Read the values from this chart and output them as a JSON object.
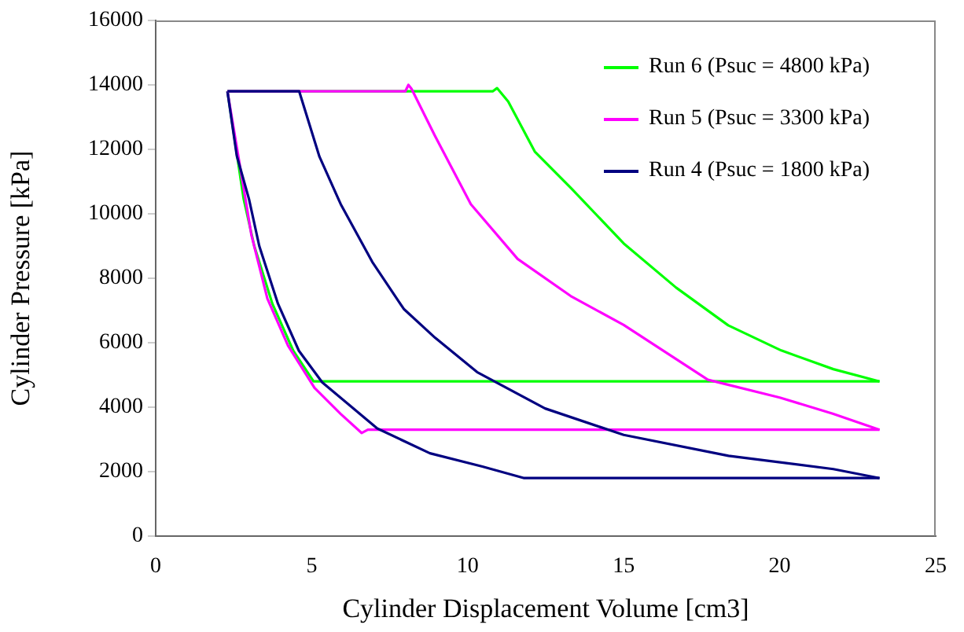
{
  "chart_data": {
    "type": "line",
    "xlabel": "Cylinder Displacement Volume [cm3]",
    "ylabel": "Cylinder Pressure [kPa]",
    "xlim": [
      0,
      25
    ],
    "xticks": [
      0,
      5,
      10,
      15,
      20,
      25
    ],
    "ylim": [
      0,
      16000
    ],
    "yticks": [
      0,
      2000,
      4000,
      6000,
      8000,
      10000,
      12000,
      14000,
      16000
    ],
    "grid": false,
    "legend": "top right",
    "marker": "none",
    "line_style": "solid",
    "series": [
      {
        "name": "Run 6 (Psuc = 4800 kPa)",
        "color": "#00ff00",
        "x": [
          2.3,
          2.82,
          3.16,
          3.74,
          4.41,
          5.06,
          23.2
        ],
        "values": [
          13800,
          10460,
          9000,
          7210,
          5750,
          4800,
          4800
        ]
      },
      {
        "name": "Run 5 (Psuc = 3300 kPa)",
        "color": "#ff00ff",
        "x": [
          2.3,
          2.82,
          3.07,
          3.58,
          4.24,
          5.09,
          5.93,
          6.6,
          6.8,
          23.2
        ],
        "values": [
          13800,
          10790,
          9330,
          7370,
          5910,
          4600,
          3790,
          3200,
          3300,
          3300
        ]
      },
      {
        "name": "Run 4 (Psuc = 1800 kPa)",
        "color": "#000080",
        "x": [
          2.3,
          2.6,
          2.99,
          3.32,
          3.92,
          4.59,
          5.34,
          7.1,
          8.79,
          10.47,
          11.81,
          23.2
        ],
        "values": [
          13800,
          11800,
          10460,
          9000,
          7210,
          5750,
          4770,
          3340,
          2570,
          2160,
          1800,
          1800
        ]
      },
      {
        "color": "#00ff00",
        "x": [
          2.3,
          10.8,
          10.94,
          11.3,
          12.15,
          13.32,
          15,
          16.68,
          18.35,
          20.05,
          21.72,
          23.2
        ],
        "values": [
          13800,
          13800,
          13900,
          13480,
          11930,
          10790,
          9080,
          7710,
          6540,
          5760,
          5180,
          4800
        ]
      },
      {
        "color": "#ff00ff",
        "x": [
          2.3,
          8.0,
          8.1,
          8.2,
          8.95,
          10.1,
          11.6,
          13.3,
          15,
          17.7,
          20,
          21.7,
          23.2
        ],
        "values": [
          13800,
          13800,
          14000,
          13880,
          12420,
          10300,
          8600,
          7450,
          6550,
          4850,
          4300,
          3800,
          3300
        ]
      },
      {
        "color": "#000080",
        "x": [
          2.3,
          4.6,
          5.25,
          5.93,
          6.94,
          7.95,
          8.96,
          10.3,
          12.48,
          15,
          18.36,
          21.72,
          23.2
        ],
        "values": [
          13800,
          13800,
          11770,
          10300,
          8510,
          7050,
          6150,
          5090,
          3960,
          3140,
          2490,
          2080,
          1800
        ]
      }
    ]
  }
}
